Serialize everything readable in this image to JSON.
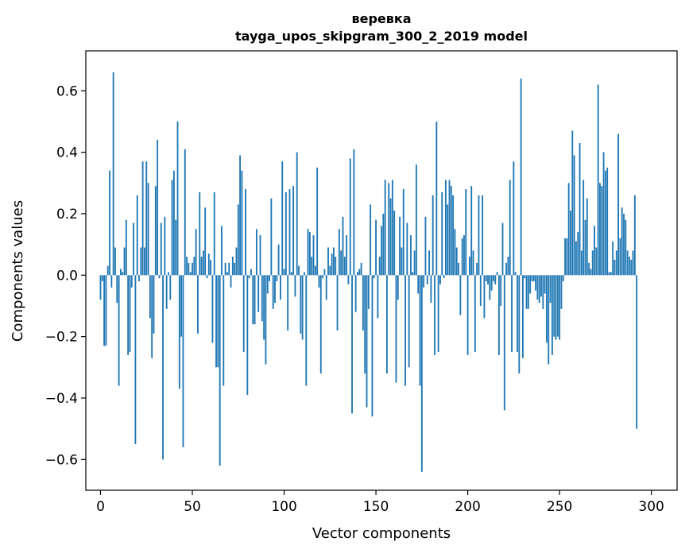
{
  "chart_data": {
    "type": "bar",
    "title": "веревка",
    "subtitle": "tayga_upos_skipgram_300_2_2019 model",
    "xlabel": "Vector components",
    "ylabel": "Components values",
    "xlim": [
      -8,
      314
    ],
    "ylim": [
      -0.7,
      0.73
    ],
    "xticks": [
      0,
      50,
      100,
      150,
      200,
      250,
      300
    ],
    "yticks": [
      -0.6,
      -0.4,
      -0.2,
      0.0,
      0.2,
      0.4,
      0.6
    ],
    "xtick_labels": [
      "0",
      "50",
      "100",
      "150",
      "200",
      "250",
      "300"
    ],
    "ytick_labels": [
      "−0.6",
      "−0.4",
      "−0.2",
      "0.0",
      "0.2",
      "0.4",
      "0.6"
    ],
    "grid": false,
    "bar_color": "#1f77b4",
    "values": [
      -0.08,
      -0.02,
      -0.23,
      -0.23,
      0.03,
      0.34,
      -0.04,
      0.66,
      0.09,
      -0.09,
      -0.36,
      0.02,
      0.01,
      0.09,
      0.18,
      -0.26,
      -0.25,
      -0.04,
      0.17,
      -0.55,
      0.26,
      -0.02,
      0.09,
      0.37,
      0.09,
      0.37,
      0.3,
      -0.14,
      -0.27,
      -0.19,
      0.29,
      0.44,
      -0.01,
      0.17,
      -0.6,
      0.19,
      -0.11,
      0.01,
      -0.08,
      0.31,
      0.34,
      0.18,
      0.5,
      -0.37,
      -0.2,
      -0.56,
      0.41,
      0.06,
      0.04,
      0.01,
      0.04,
      0.06,
      0.15,
      -0.19,
      0.27,
      0.06,
      0.08,
      0.22,
      -0.01,
      0.07,
      0.05,
      -0.22,
      0.27,
      -0.3,
      -0.3,
      -0.62,
      0.16,
      -0.36,
      0.04,
      0.01,
      0.04,
      -0.04,
      0.06,
      0.04,
      0.09,
      0.23,
      0.39,
      0.34,
      -0.25,
      0.28,
      -0.39,
      -0.01,
      0.02,
      -0.16,
      -0.16,
      0.15,
      -0.12,
      0.13,
      -0.15,
      -0.21,
      -0.29,
      -0.06,
      -0.02,
      0.25,
      -0.11,
      -0.09,
      -0.02,
      0.1,
      -0.08,
      0.37,
      0.02,
      0.27,
      -0.18,
      0.28,
      0.01,
      0.29,
      -0.07,
      0.4,
      0.03,
      -0.19,
      -0.21,
      0.01,
      -0.36,
      0.15,
      0.14,
      0.06,
      0.13,
      0.03,
      0.35,
      -0.04,
      -0.32,
      -0.01,
      0.02,
      -0.08,
      0.09,
      0.03,
      0.07,
      0.09,
      0.06,
      -0.18,
      0.15,
      0.08,
      0.19,
      0.06,
      0.13,
      -0.03,
      0.38,
      -0.45,
      0.41,
      -0.12,
      0.01,
      0.02,
      0.04,
      -0.18,
      -0.32,
      -0.43,
      -0.11,
      0.23,
      -0.46,
      -0.01,
      0.18,
      -0.14,
      0.06,
      0.16,
      0.2,
      0.31,
      -0.32,
      0.3,
      0.25,
      0.31,
      0.21,
      -0.35,
      -0.08,
      0.19,
      0.09,
      0.28,
      -0.36,
      0.17,
      -0.3,
      0.13,
      0.01,
      0.08,
      0.36,
      -0.06,
      -0.36,
      -0.64,
      -0.04,
      0.19,
      -0.03,
      0.08,
      -0.09,
      0.26,
      -0.26,
      0.5,
      -0.25,
      -0.03,
      0.27,
      -0.01,
      0.31,
      0.23,
      0.31,
      0.29,
      0.26,
      0.15,
      0.09,
      0.04,
      -0.13,
      0.12,
      0.13,
      0.28,
      -0.26,
      0.06,
      0.29,
      0.08,
      -0.25,
      0.04,
      0.26,
      -0.1,
      0.26,
      -0.14,
      -0.02,
      -0.03,
      -0.08,
      -0.05,
      -0.02,
      -0.03,
      0.01,
      -0.26,
      -0.1,
      0.17,
      -0.44,
      0.04,
      0.06,
      0.31,
      -0.25,
      0.37,
      0.01,
      -0.25,
      -0.32,
      0.64,
      -0.27,
      -0.01,
      -0.11,
      -0.11,
      -0.06,
      -0.02,
      -0.02,
      -0.05,
      -0.08,
      -0.09,
      -0.07,
      -0.11,
      -0.06,
      -0.22,
      -0.29,
      -0.09,
      -0.26,
      -0.2,
      -0.21,
      -0.2,
      -0.21,
      -0.11,
      -0.02,
      0.12,
      0.12,
      0.3,
      0.21,
      0.47,
      0.39,
      0.11,
      0.14,
      0.43,
      0.08,
      0.31,
      0.18,
      0.25,
      0.04,
      0.02,
      0.08,
      0.16,
      0.09,
      0.62,
      0.3,
      0.29,
      0.4,
      0.34,
      0.35,
      0.01,
      0.01,
      0.11,
      0.05,
      0.08,
      0.46,
      0.12,
      0.22,
      0.2,
      0.18,
      0.08,
      0.06,
      0.05,
      0.08,
      0.26,
      -0.5
    ]
  }
}
